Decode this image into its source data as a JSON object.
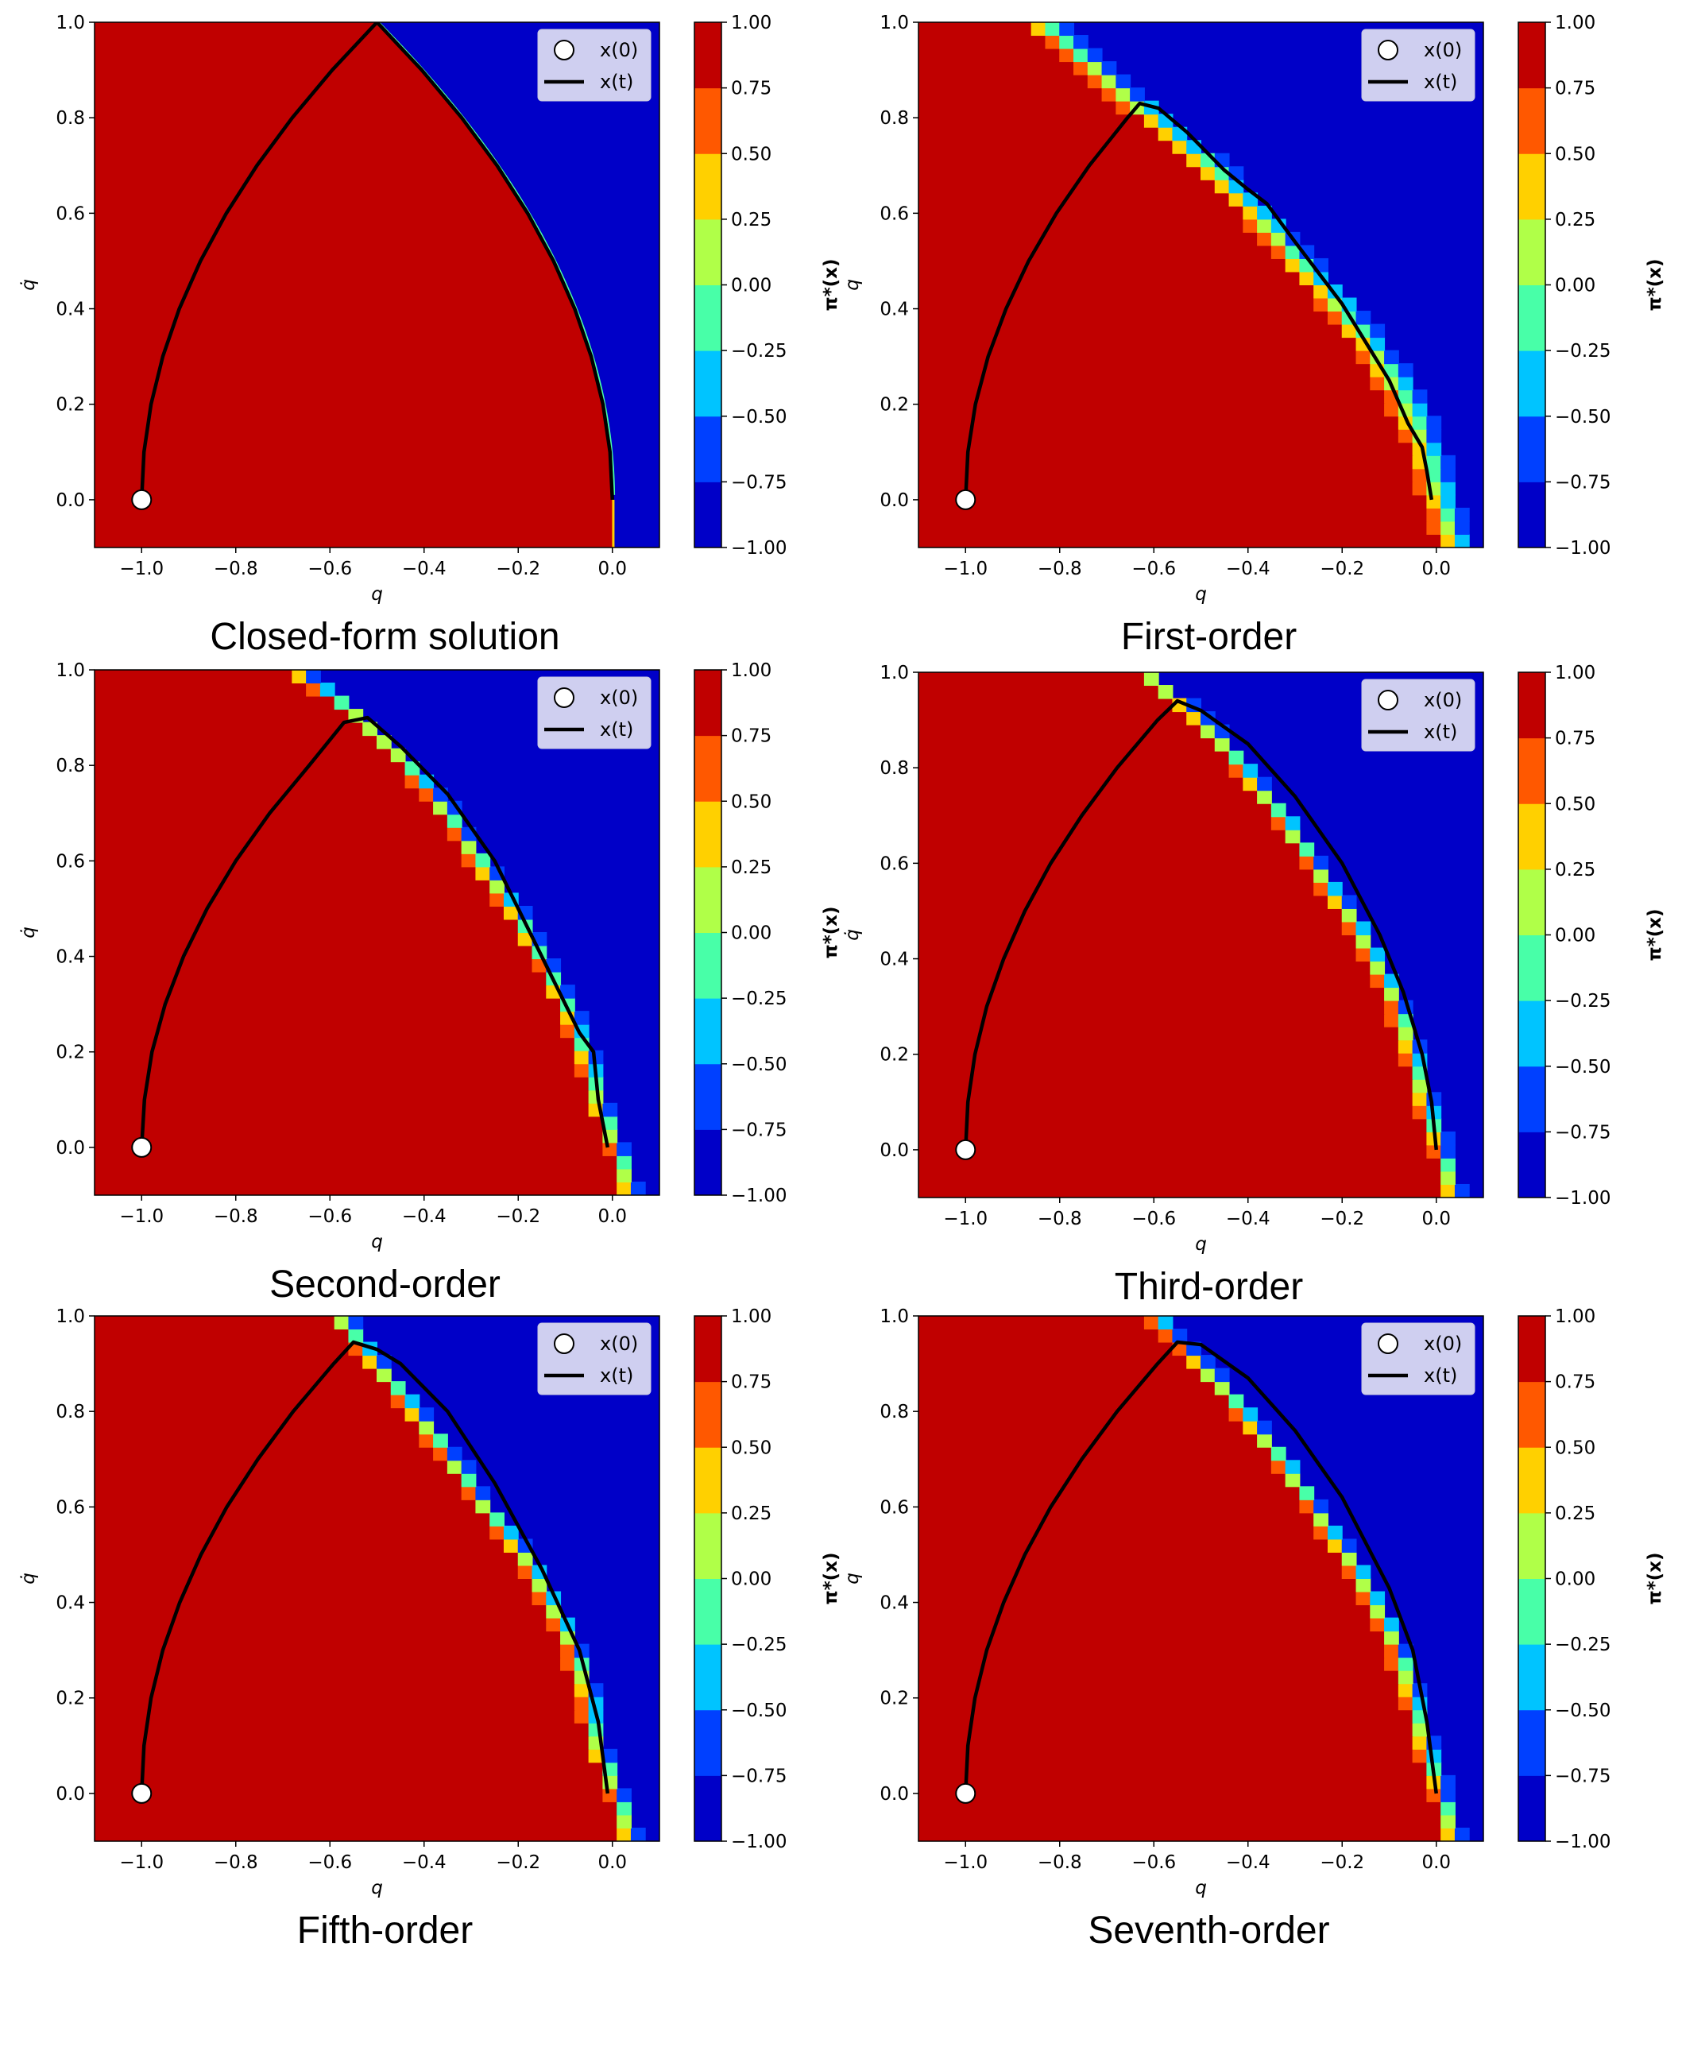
{
  "colormap_levels": [
    -1.0,
    -0.75,
    -0.5,
    -0.25,
    0.0,
    0.25,
    0.5,
    0.75,
    1.0
  ],
  "colormap_colors": [
    "#0000c8",
    "#0040ff",
    "#00c4ff",
    "#48ffa8",
    "#b0ff48",
    "#ffd000",
    "#ff5800",
    "#c00000"
  ],
  "chart_data": [
    {
      "type": "heatmap",
      "title": "Closed-form solution",
      "xlabel": "q",
      "ylabel": "q̇",
      "xlim": [
        -1.1,
        0.1
      ],
      "ylim": [
        -0.1,
        1.0
      ],
      "xticks": [
        "−1.0",
        "−0.8",
        "−0.6",
        "−0.4",
        "−0.2",
        "0.0"
      ],
      "xtick_values": [
        -1.0,
        -0.8,
        -0.6,
        -0.4,
        -0.2,
        0.0
      ],
      "yticks": [
        "0.0",
        "0.2",
        "0.4",
        "0.6",
        "0.8",
        "1.0"
      ],
      "ytick_values": [
        0.0,
        0.2,
        0.4,
        0.6,
        0.8,
        1.0
      ],
      "colorbar": {
        "label": "π*(x)",
        "ticks": [
          "1.00",
          "0.75",
          "0.50",
          "0.25",
          "0.00",
          "−0.25",
          "−0.50",
          "−0.75",
          "−1.00"
        ],
        "range": [
          -1,
          1
        ]
      },
      "legend": {
        "items": [
          "x(0)",
          "x(t)"
        ],
        "placement": "upper right"
      },
      "switching_boundary": "closed-form",
      "band_width": 0,
      "initial_state": [
        -1.0,
        0.0
      ],
      "trajectory": [
        [
          -1.0,
          0.0
        ],
        [
          -0.995,
          0.1
        ],
        [
          -0.98,
          0.2
        ],
        [
          -0.955,
          0.3
        ],
        [
          -0.92,
          0.4
        ],
        [
          -0.875,
          0.5
        ],
        [
          -0.82,
          0.6
        ],
        [
          -0.755,
          0.7
        ],
        [
          -0.68,
          0.8
        ],
        [
          -0.595,
          0.9
        ],
        [
          -0.5,
          1.0
        ],
        [
          -0.405,
          0.9
        ],
        [
          -0.32,
          0.8
        ],
        [
          -0.245,
          0.7
        ],
        [
          -0.18,
          0.6
        ],
        [
          -0.125,
          0.5
        ],
        [
          -0.08,
          0.4
        ],
        [
          -0.045,
          0.3
        ],
        [
          -0.02,
          0.2
        ],
        [
          -0.005,
          0.1
        ],
        [
          0.0,
          0.0
        ]
      ]
    },
    {
      "type": "heatmap",
      "title": "First-order",
      "xlabel": "q",
      "ylabel": "q",
      "xlim": [
        -1.1,
        0.1
      ],
      "ylim": [
        -0.1,
        1.0
      ],
      "xticks": [
        "−1.0",
        "−0.8",
        "−0.6",
        "−0.4",
        "−0.2",
        "0.0"
      ],
      "xtick_values": [
        -1.0,
        -0.8,
        -0.6,
        -0.4,
        -0.2,
        0.0
      ],
      "yticks": [
        "0.0",
        "0.2",
        "0.4",
        "0.6",
        "0.8",
        "1.0"
      ],
      "ytick_values": [
        0.0,
        0.2,
        0.4,
        0.6,
        0.8,
        1.0
      ],
      "colorbar": {
        "label": "π*(x)",
        "ticks": [
          "1.00",
          "0.75",
          "0.50",
          "0.25",
          "0.00",
          "−0.25",
          "−0.50",
          "−0.75",
          "−1.00"
        ],
        "range": [
          -1,
          1
        ]
      },
      "legend": {
        "items": [
          "x(0)",
          "x(t)"
        ],
        "placement": "upper right"
      },
      "switching_boundary": [
        [
          -0.1,
          0.04
        ],
        [
          0.0,
          0.01
        ],
        [
          0.1,
          -0.02
        ],
        [
          0.2,
          -0.06
        ],
        [
          0.3,
          -0.12
        ],
        [
          0.4,
          -0.2
        ],
        [
          0.5,
          -0.29
        ],
        [
          0.6,
          -0.38
        ],
        [
          0.7,
          -0.48
        ],
        [
          0.8,
          -0.6
        ],
        [
          0.9,
          -0.72
        ],
        [
          1.0,
          -0.84
        ]
      ],
      "band_width": 0.05,
      "initial_state": [
        -1.0,
        0.0
      ],
      "trajectory": [
        [
          -1.0,
          0.0
        ],
        [
          -0.995,
          0.1
        ],
        [
          -0.979,
          0.2
        ],
        [
          -0.952,
          0.3
        ],
        [
          -0.914,
          0.4
        ],
        [
          -0.866,
          0.5
        ],
        [
          -0.807,
          0.6
        ],
        [
          -0.737,
          0.7
        ],
        [
          -0.656,
          0.8
        ],
        [
          -0.63,
          0.83
        ],
        [
          -0.59,
          0.82
        ],
        [
          -0.53,
          0.77
        ],
        [
          -0.45,
          0.69
        ],
        [
          -0.4,
          0.65
        ],
        [
          -0.36,
          0.62
        ],
        [
          -0.3,
          0.54
        ],
        [
          -0.2,
          0.41
        ],
        [
          -0.15,
          0.33
        ],
        [
          -0.1,
          0.25
        ],
        [
          -0.06,
          0.16
        ],
        [
          -0.03,
          0.11
        ],
        [
          -0.02,
          0.06
        ],
        [
          -0.01,
          0.0
        ]
      ]
    },
    {
      "type": "heatmap",
      "title": "Second-order",
      "xlabel": "q",
      "ylabel": "q̇",
      "xlim": [
        -1.1,
        0.1
      ],
      "ylim": [
        -0.1,
        1.0
      ],
      "xticks": [
        "−1.0",
        "−0.8",
        "−0.6",
        "−0.4",
        "−0.2",
        "0.0"
      ],
      "xtick_values": [
        -1.0,
        -0.8,
        -0.6,
        -0.4,
        -0.2,
        0.0
      ],
      "yticks": [
        "0.0",
        "0.2",
        "0.4",
        "0.6",
        "0.8",
        "1.0"
      ],
      "ytick_values": [
        0.0,
        0.2,
        0.4,
        0.6,
        0.8,
        1.0
      ],
      "colorbar": {
        "label": "π*(x)",
        "ticks": [
          "1.00",
          "0.75",
          "0.50",
          "0.25",
          "0.00",
          "−0.25",
          "−0.50",
          "−0.75",
          "−1.00"
        ],
        "range": [
          -1,
          1
        ]
      },
      "legend": {
        "items": [
          "x(0)",
          "x(t)"
        ],
        "placement": "upper right"
      },
      "switching_boundary": [
        [
          -0.1,
          0.04
        ],
        [
          0.0,
          0.01
        ],
        [
          0.1,
          -0.03
        ],
        [
          0.2,
          -0.06
        ],
        [
          0.3,
          -0.1
        ],
        [
          0.4,
          -0.15
        ],
        [
          0.5,
          -0.21
        ],
        [
          0.6,
          -0.28
        ],
        [
          0.7,
          -0.35
        ],
        [
          0.8,
          -0.43
        ],
        [
          0.9,
          -0.54
        ],
        [
          1.0,
          -0.67
        ]
      ],
      "band_width": 0.03,
      "initial_state": [
        -1.0,
        0.0
      ],
      "trajectory": [
        [
          -1.0,
          0.0
        ],
        [
          -0.994,
          0.1
        ],
        [
          -0.978,
          0.2
        ],
        [
          -0.95,
          0.3
        ],
        [
          -0.911,
          0.4
        ],
        [
          -0.861,
          0.5
        ],
        [
          -0.8,
          0.6
        ],
        [
          -0.728,
          0.7
        ],
        [
          -0.644,
          0.8
        ],
        [
          -0.57,
          0.89
        ],
        [
          -0.52,
          0.9
        ],
        [
          -0.45,
          0.84
        ],
        [
          -0.35,
          0.74
        ],
        [
          -0.25,
          0.6
        ],
        [
          -0.2,
          0.5
        ],
        [
          -0.12,
          0.34
        ],
        [
          -0.07,
          0.24
        ],
        [
          -0.04,
          0.2
        ],
        [
          -0.03,
          0.1
        ],
        [
          -0.01,
          0.0
        ]
      ]
    },
    {
      "type": "heatmap",
      "title": "Third-order",
      "xlabel": "q",
      "ylabel": "q̇",
      "xlim": [
        -1.1,
        0.1
      ],
      "ylim": [
        -0.1,
        1.0
      ],
      "xticks": [
        "−1.0",
        "−0.8",
        "−0.6",
        "−0.4",
        "−0.2",
        "0.0"
      ],
      "xtick_values": [
        -1.0,
        -0.8,
        -0.6,
        -0.4,
        -0.2,
        0.0
      ],
      "yticks": [
        "0.0",
        "0.2",
        "0.4",
        "0.6",
        "0.8",
        "1.0"
      ],
      "ytick_values": [
        0.0,
        0.2,
        0.4,
        0.6,
        0.8,
        1.0
      ],
      "colorbar": {
        "label": "π*(x)",
        "ticks": [
          "1.00",
          "0.75",
          "0.50",
          "0.25",
          "0.00",
          "−0.25",
          "−0.50",
          "−0.75",
          "−1.00"
        ],
        "range": [
          -1,
          1
        ]
      },
      "legend": {
        "items": [
          "x(0)",
          "x(t)"
        ],
        "placement": "upper right"
      },
      "switching_boundary": [
        [
          -0.1,
          0.04
        ],
        [
          0.0,
          0.01
        ],
        [
          0.1,
          -0.02
        ],
        [
          0.2,
          -0.05
        ],
        [
          0.3,
          -0.08
        ],
        [
          0.4,
          -0.13
        ],
        [
          0.5,
          -0.19
        ],
        [
          0.6,
          -0.26
        ],
        [
          0.7,
          -0.33
        ],
        [
          0.8,
          -0.41
        ],
        [
          0.9,
          -0.5
        ],
        [
          1.0,
          -0.62
        ]
      ],
      "band_width": 0.03,
      "initial_state": [
        -1.0,
        0.0
      ],
      "trajectory": [
        [
          -1.0,
          0.0
        ],
        [
          -0.995,
          0.1
        ],
        [
          -0.98,
          0.2
        ],
        [
          -0.955,
          0.3
        ],
        [
          -0.919,
          0.4
        ],
        [
          -0.874,
          0.5
        ],
        [
          -0.819,
          0.6
        ],
        [
          -0.753,
          0.7
        ],
        [
          -0.678,
          0.8
        ],
        [
          -0.592,
          0.9
        ],
        [
          -0.55,
          0.94
        ],
        [
          -0.5,
          0.92
        ],
        [
          -0.4,
          0.85
        ],
        [
          -0.3,
          0.74
        ],
        [
          -0.2,
          0.6
        ],
        [
          -0.12,
          0.45
        ],
        [
          -0.07,
          0.33
        ],
        [
          -0.03,
          0.2
        ],
        [
          -0.01,
          0.1
        ],
        [
          0.0,
          0.0
        ]
      ]
    },
    {
      "type": "heatmap",
      "title": "Fifth-order",
      "xlabel": "q",
      "ylabel": "q̇",
      "xlim": [
        -1.1,
        0.1
      ],
      "ylim": [
        -0.1,
        1.0
      ],
      "xticks": [
        "−1.0",
        "−0.8",
        "−0.6",
        "−0.4",
        "−0.2",
        "0.0"
      ],
      "xtick_values": [
        -1.0,
        -0.8,
        -0.6,
        -0.4,
        -0.2,
        0.0
      ],
      "yticks": [
        "0.0",
        "0.2",
        "0.4",
        "0.6",
        "0.8",
        "1.0"
      ],
      "ytick_values": [
        0.0,
        0.2,
        0.4,
        0.6,
        0.8,
        1.0
      ],
      "colorbar": {
        "label": "π*(x)",
        "ticks": [
          "1.00",
          "0.75",
          "0.50",
          "0.25",
          "0.00",
          "−0.25",
          "−0.50",
          "−0.75",
          "−1.00"
        ],
        "range": [
          -1,
          1
        ]
      },
      "legend": {
        "items": [
          "x(0)",
          "x(t)"
        ],
        "placement": "upper right"
      },
      "switching_boundary": [
        [
          -0.1,
          0.04
        ],
        [
          0.0,
          0.01
        ],
        [
          0.1,
          -0.03
        ],
        [
          0.2,
          -0.05
        ],
        [
          0.3,
          -0.08
        ],
        [
          0.4,
          -0.13
        ],
        [
          0.5,
          -0.19
        ],
        [
          0.6,
          -0.27
        ],
        [
          0.7,
          -0.34
        ],
        [
          0.8,
          -0.42
        ],
        [
          0.9,
          -0.5
        ],
        [
          1.0,
          -0.58
        ]
      ],
      "band_width": 0.03,
      "initial_state": [
        -1.0,
        0.0
      ],
      "trajectory": [
        [
          -1.0,
          0.0
        ],
        [
          -0.995,
          0.1
        ],
        [
          -0.98,
          0.2
        ],
        [
          -0.955,
          0.3
        ],
        [
          -0.919,
          0.4
        ],
        [
          -0.874,
          0.5
        ],
        [
          -0.819,
          0.6
        ],
        [
          -0.753,
          0.7
        ],
        [
          -0.678,
          0.8
        ],
        [
          -0.592,
          0.9
        ],
        [
          -0.55,
          0.945
        ],
        [
          -0.5,
          0.93
        ],
        [
          -0.45,
          0.9
        ],
        [
          -0.35,
          0.8
        ],
        [
          -0.25,
          0.65
        ],
        [
          -0.15,
          0.47
        ],
        [
          -0.07,
          0.3
        ],
        [
          -0.03,
          0.15
        ],
        [
          -0.01,
          0.0
        ]
      ]
    },
    {
      "type": "heatmap",
      "title": "Seventh-order",
      "xlabel": "q",
      "ylabel": "q",
      "xlim": [
        -1.1,
        0.1
      ],
      "ylim": [
        -0.1,
        1.0
      ],
      "xticks": [
        "−1.0",
        "−0.8",
        "−0.6",
        "−0.4",
        "−0.2",
        "0.0"
      ],
      "xtick_values": [
        -1.0,
        -0.8,
        -0.6,
        -0.4,
        -0.2,
        0.0
      ],
      "yticks": [
        "0.0",
        "0.2",
        "0.4",
        "0.6",
        "0.8",
        "1.0"
      ],
      "ytick_values": [
        0.0,
        0.2,
        0.4,
        0.6,
        0.8,
        1.0
      ],
      "colorbar": {
        "label": "π*(x)",
        "ticks": [
          "1.00",
          "0.75",
          "0.50",
          "0.25",
          "0.00",
          "−0.25",
          "−0.50",
          "−0.75",
          "−1.00"
        ],
        "range": [
          -1,
          1
        ]
      },
      "legend": {
        "items": [
          "x(0)",
          "x(t)"
        ],
        "placement": "upper right"
      },
      "switching_boundary": [
        [
          -0.1,
          0.04
        ],
        [
          0.0,
          0.01
        ],
        [
          0.1,
          -0.02
        ],
        [
          0.2,
          -0.05
        ],
        [
          0.3,
          -0.08
        ],
        [
          0.4,
          -0.13
        ],
        [
          0.5,
          -0.19
        ],
        [
          0.6,
          -0.26
        ],
        [
          0.7,
          -0.33
        ],
        [
          0.8,
          -0.41
        ],
        [
          0.9,
          -0.5
        ],
        [
          1.0,
          -0.6
        ]
      ],
      "band_width": 0.03,
      "initial_state": [
        -1.0,
        0.0
      ],
      "trajectory": [
        [
          -1.0,
          0.0
        ],
        [
          -0.995,
          0.1
        ],
        [
          -0.98,
          0.2
        ],
        [
          -0.955,
          0.3
        ],
        [
          -0.919,
          0.4
        ],
        [
          -0.874,
          0.5
        ],
        [
          -0.819,
          0.6
        ],
        [
          -0.753,
          0.7
        ],
        [
          -0.678,
          0.8
        ],
        [
          -0.592,
          0.9
        ],
        [
          -0.55,
          0.945
        ],
        [
          -0.5,
          0.94
        ],
        [
          -0.4,
          0.87
        ],
        [
          -0.3,
          0.76
        ],
        [
          -0.2,
          0.62
        ],
        [
          -0.1,
          0.43
        ],
        [
          -0.05,
          0.3
        ],
        [
          -0.02,
          0.15
        ],
        [
          0.0,
          0.0
        ]
      ]
    }
  ]
}
